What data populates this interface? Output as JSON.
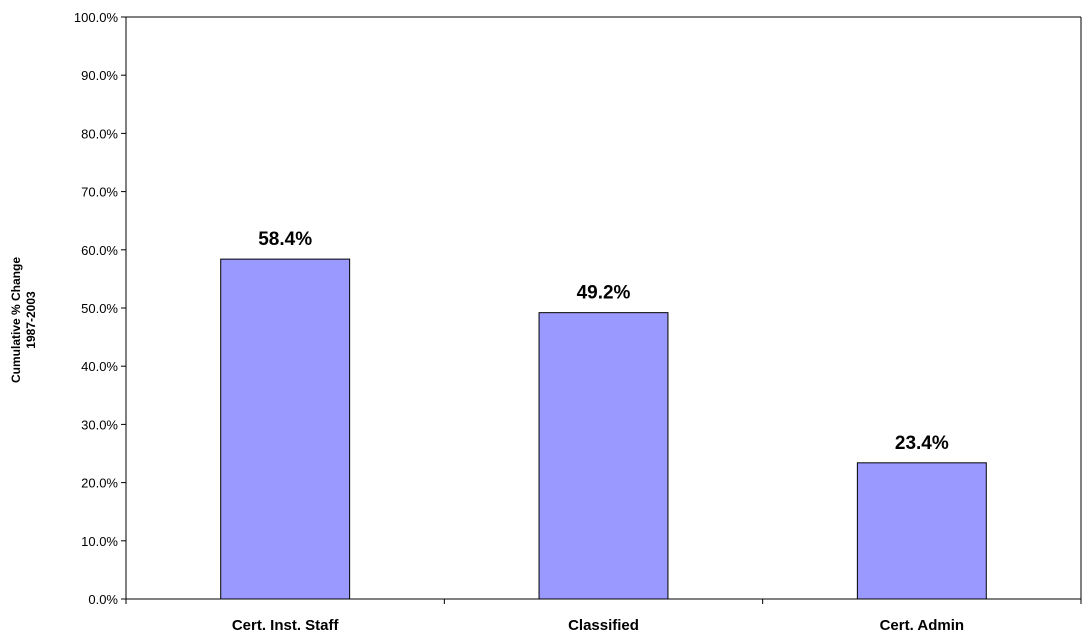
{
  "chart_data": {
    "type": "bar",
    "categories": [
      "Cert. Inst. Staff",
      "Classified",
      "Cert. Admin"
    ],
    "values": [
      58.4,
      49.2,
      23.4
    ],
    "data_labels": [
      "58.4%",
      "49.2%",
      "23.4%"
    ],
    "ylabel_lines": [
      "Cumulative % Change",
      "1987-2003"
    ],
    "ylim": [
      0,
      100
    ],
    "yticks": [
      0,
      10,
      20,
      30,
      40,
      50,
      60,
      70,
      80,
      90,
      100
    ],
    "ytick_labels": [
      "0.0%",
      "10.0%",
      "20.0%",
      "30.0%",
      "40.0%",
      "50.0%",
      "60.0%",
      "70.0%",
      "80.0%",
      "90.0%",
      "100.0%"
    ],
    "grid": false,
    "legend": "none",
    "bar_color": "#9999ff",
    "bar_edge_color": "#000000"
  }
}
